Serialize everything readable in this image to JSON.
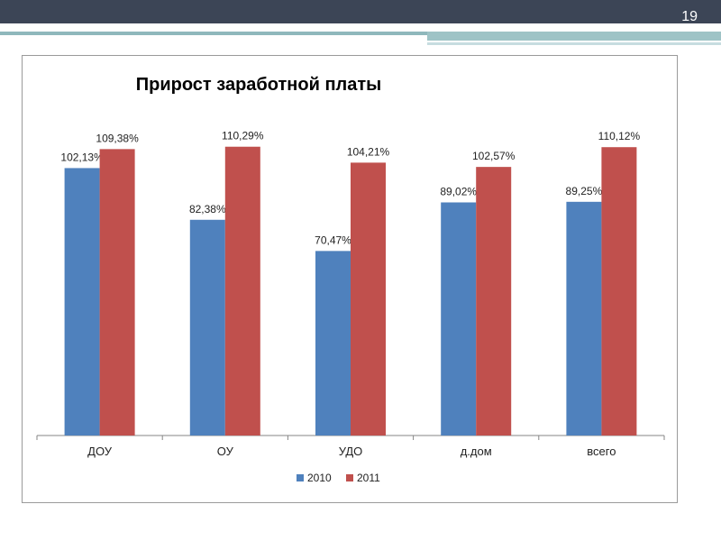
{
  "slide": {
    "number": "19"
  },
  "colors": {
    "header_bar": "#3c4556",
    "accent_teal": "#8fb8bc",
    "series_2010": "#4f81bd",
    "series_2011": "#c0504d",
    "axis": "#868686",
    "text": "#000000"
  },
  "chart_data": {
    "type": "bar",
    "title": "Прирост заработной платы",
    "xlabel": "",
    "ylabel": "",
    "ylim": [
      0,
      125
    ],
    "grid": false,
    "legend": "bottom",
    "categories": [
      "ДОУ",
      "ОУ",
      "УДО",
      "д.дом",
      "всего"
    ],
    "series": [
      {
        "name": "2010",
        "color": "#4f81bd",
        "values": [
          102.13,
          82.38,
          70.47,
          89.02,
          89.25
        ],
        "labels": [
          "102,13%",
          "82,38%",
          "70,47%",
          "89,02%",
          "89,25%"
        ]
      },
      {
        "name": "2011",
        "color": "#c0504d",
        "values": [
          109.38,
          110.29,
          104.21,
          102.57,
          110.12
        ],
        "labels": [
          "109,38%",
          "110,29%",
          "104,21%",
          "102,57%",
          "110,12%"
        ]
      }
    ]
  }
}
